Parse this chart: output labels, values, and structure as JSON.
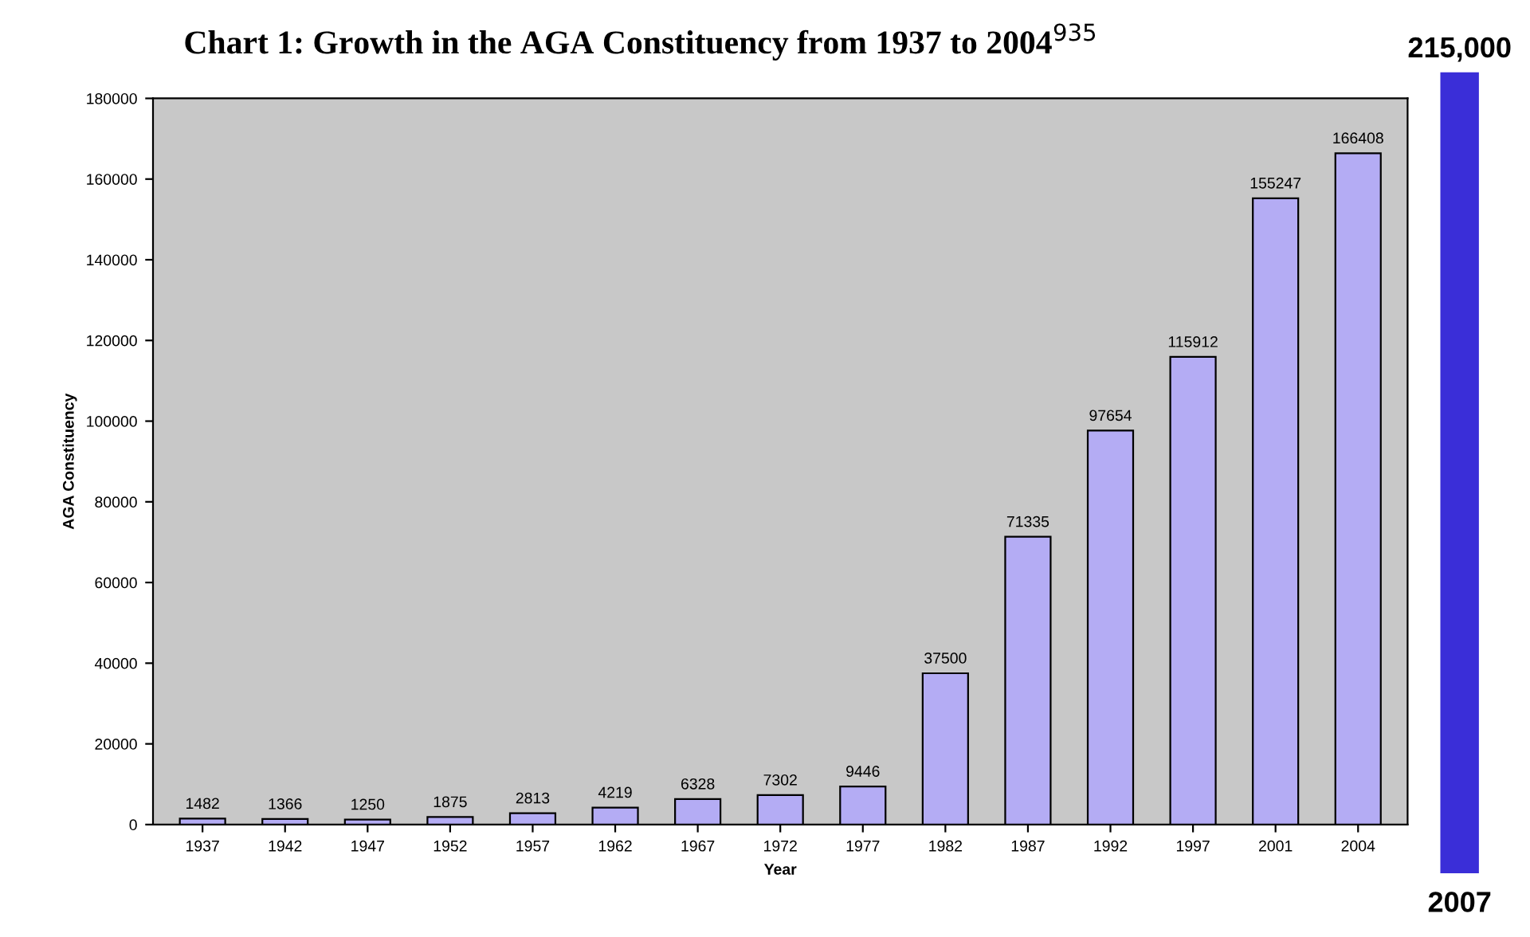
{
  "chart_data": [
    {
      "type": "bar",
      "title": "Chart 1: Growth in the AGA Constituency from 1937 to 2004$^{935}$",
      "xlabel": "Year",
      "ylabel": "AGA Constituency",
      "categories": [
        "1937",
        "1942",
        "1947",
        "1952",
        "1957",
        "1962",
        "1967",
        "1972",
        "1977",
        "1982",
        "1987",
        "1992",
        "1997",
        "2001",
        "2004"
      ],
      "values": [
        1482,
        1366,
        1250,
        1875,
        2813,
        4219,
        6328,
        7302,
        9446,
        37500,
        71335,
        97654,
        115912,
        155247,
        166408
      ],
      "color": "#b4acf4",
      "ylim": [
        0,
        180000
      ],
      "yticks": [
        0,
        20000,
        40000,
        60000,
        80000,
        100000,
        120000,
        140000,
        160000,
        180000
      ],
      "grid": false,
      "data_labels": true
    },
    {
      "type": "bar",
      "categories": [
        "2007"
      ],
      "values": [
        215000
      ],
      "value_labels": [
        "215,000"
      ],
      "color": "#3a2ed8",
      "tick_labels": "x"
    }
  ]
}
